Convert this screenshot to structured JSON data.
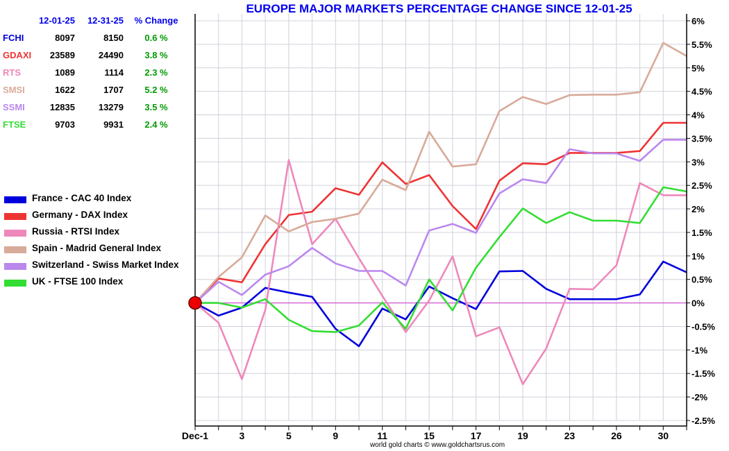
{
  "chart_data": {
    "type": "line",
    "title": "EUROPE MAJOR MARKETS PERCENTAGE CHANGE SINCE 12-01-25",
    "credit": "world gold charts © www.goldchartsrus.com",
    "ylim": [
      -2.5,
      6
    ],
    "y_step": 0.5,
    "x_count": 22,
    "x_tick_labels": [
      {
        "index": 0,
        "label": "Dec-1"
      },
      {
        "index": 2,
        "label": "3"
      },
      {
        "index": 4,
        "label": "5"
      },
      {
        "index": 6,
        "label": "9"
      },
      {
        "index": 8,
        "label": "11"
      },
      {
        "index": 10,
        "label": "15"
      },
      {
        "index": 12,
        "label": "17"
      },
      {
        "index": 14,
        "label": "19"
      },
      {
        "index": 16,
        "label": "23"
      },
      {
        "index": 18,
        "label": "26"
      },
      {
        "index": 20,
        "label": "30"
      }
    ],
    "y_tick_labels": [
      "6%",
      "5.5%",
      "5%",
      "4.5%",
      "4%",
      "3.5%",
      "3%",
      "2.5%",
      "2%",
      "1.5%",
      "1%",
      "0.5%",
      "0%",
      "-0.5%",
      "-1%",
      "-1.5%",
      "-2%",
      "-2.5%"
    ],
    "zero_line_color": "#cc33cc",
    "marker_color": "#ee0000",
    "table": {
      "headers": [
        "",
        "12-01-25",
        "12-31-25",
        "% Change"
      ],
      "rows": [
        {
          "name": "FCHI",
          "start": "8097",
          "end": "8150",
          "change": "0.6 %",
          "color": "#0000dd"
        },
        {
          "name": "GDAXI",
          "start": "23589",
          "end": "24490",
          "change": "3.8 %",
          "color": "#ee3333"
        },
        {
          "name": "RTS",
          "start": "1089",
          "end": "1114",
          "change": "2.3 %",
          "color": "#ee88bb"
        },
        {
          "name": "SMSI",
          "start": "1622",
          "end": "1707",
          "change": "5.2 %",
          "color": "#d8aa99"
        },
        {
          "name": "SSMI",
          "start": "12835",
          "end": "13279",
          "change": "3.5 %",
          "color": "#bb88ee"
        },
        {
          "name": "FTSE",
          "start": "9703",
          "end": "9931",
          "change": "2.4 %",
          "color": "#33dd33"
        }
      ]
    },
    "series": [
      {
        "name": "France - CAC 40 Index",
        "color": "#0000dd",
        "values": [
          0,
          -0.27,
          -0.1,
          0.32,
          0.22,
          0.13,
          -0.55,
          -0.92,
          -0.12,
          -0.35,
          0.35,
          0.1,
          -0.13,
          0.67,
          0.68,
          0.3,
          0.08,
          0.08,
          0.08,
          0.18,
          0.88,
          0.65
        ]
      },
      {
        "name": "Germany - DAX Index",
        "color": "#ee3333",
        "values": [
          0,
          0.52,
          0.44,
          1.25,
          1.87,
          1.94,
          2.44,
          2.3,
          2.99,
          2.53,
          2.72,
          2.06,
          1.57,
          2.6,
          2.97,
          2.95,
          3.19,
          3.19,
          3.19,
          3.23,
          3.83,
          3.83
        ]
      },
      {
        "name": "Russia - RTSI Index",
        "color": "#ee88bb",
        "values": [
          0,
          -0.42,
          -1.62,
          -0.15,
          3.04,
          1.25,
          1.79,
          0.95,
          0.15,
          -0.62,
          0.05,
          0.99,
          -0.71,
          -0.52,
          -1.73,
          -0.97,
          0.3,
          0.29,
          0.8,
          2.55,
          2.29,
          2.29
        ]
      },
      {
        "name": "Spain - Madrid General Index",
        "color": "#d8aa99",
        "values": [
          0,
          0.55,
          0.97,
          1.86,
          1.52,
          1.72,
          1.79,
          1.9,
          2.62,
          2.4,
          3.64,
          2.9,
          2.95,
          4.08,
          4.38,
          4.23,
          4.42,
          4.43,
          4.43,
          4.48,
          5.53,
          5.25
        ]
      },
      {
        "name": "Switzerland - Swiss Market Index",
        "color": "#bb88ee",
        "values": [
          0,
          0.45,
          0.17,
          0.6,
          0.78,
          1.17,
          0.84,
          0.68,
          0.68,
          0.37,
          1.54,
          1.68,
          1.49,
          2.33,
          2.63,
          2.55,
          3.27,
          3.18,
          3.18,
          3.02,
          3.47,
          3.47
        ]
      },
      {
        "name": "UK - FTSE 100 Index",
        "color": "#33dd33",
        "values": [
          0,
          0.0,
          -0.1,
          0.08,
          -0.36,
          -0.6,
          -0.62,
          -0.48,
          0.01,
          -0.55,
          0.5,
          -0.16,
          0.75,
          1.4,
          2.01,
          1.7,
          1.93,
          1.75,
          1.75,
          1.7,
          2.46,
          2.37
        ]
      }
    ]
  }
}
